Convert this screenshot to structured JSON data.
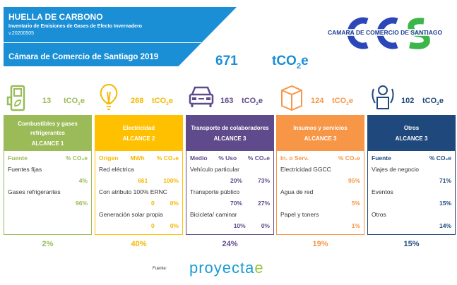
{
  "header": {
    "title": "HUELLA DE CARBONO",
    "subtitle": "Inventario de Emisiones de Gases de Efecto Invernadero",
    "version": "v.20200505",
    "org": "Cámara de Comercio de Santiago 2019"
  },
  "total": {
    "value": "671",
    "unit": "tCO",
    "unit_sub": "2",
    "unit_end": "e"
  },
  "logo": {
    "text": "CAMARA DE COMERCIO DE SANTIAGO",
    "letters": "CCS"
  },
  "categories": [
    {
      "icon": "fuel-pump-leaf-icon",
      "value": "13",
      "color": "#9bbb59",
      "text": "#9bbb59",
      "title": "Combustibles y gases refrigerantes",
      "scope": "ALCANCE 1",
      "share": "2%",
      "cols": [
        "Fuente",
        "% CO₂e"
      ],
      "rows": [
        {
          "label": "Fuentes fijas",
          "vals": [
            "4%"
          ]
        },
        {
          "label": "Gases refrigerantes",
          "vals": [
            "96%"
          ]
        }
      ]
    },
    {
      "icon": "light-bulb-icon",
      "value": "268",
      "color": "#ffc000",
      "text": "#f5b800",
      "title": "Electricidad",
      "scope": "ALCANCE 2",
      "share": "40%",
      "cols": [
        "Origen",
        "MWh",
        "% CO₂e"
      ],
      "rows": [
        {
          "label": "Red eléctrica",
          "vals": [
            "661",
            "100%"
          ]
        },
        {
          "label": "Con atributo 100% ERNC",
          "vals": [
            "0",
            "0%"
          ]
        },
        {
          "label": "Generación solar propia",
          "vals": [
            "0",
            "0%"
          ]
        }
      ]
    },
    {
      "icon": "car-icon",
      "value": "163",
      "color": "#5f4b8b",
      "text": "#5f4b8b",
      "title": "Transporte de colaboradores",
      "scope": "ALCANCE 3",
      "share": "24%",
      "cols": [
        "Medio",
        "% Uso",
        "% CO₂e"
      ],
      "rows": [
        {
          "label": "Vehículo particular",
          "vals": [
            "20%",
            "73%"
          ]
        },
        {
          "label": "Transporte público",
          "vals": [
            "70%",
            "27%"
          ]
        },
        {
          "label": "Bicicleta/ caminar",
          "vals": [
            "10%",
            "0%"
          ]
        }
      ]
    },
    {
      "icon": "box-icon",
      "value": "124",
      "color": "#f79646",
      "text": "#f79646",
      "title": "Insumos y servicios",
      "scope": "ALCANCE 3",
      "share": "19%",
      "cols": [
        "In. o Serv.",
        "% CO₂e"
      ],
      "rows": [
        {
          "label": "Electricidad GGCC",
          "vals": [
            "95%"
          ]
        },
        {
          "label": "Agua de red",
          "vals": [
            "5%"
          ]
        },
        {
          "label": "Papel y toners",
          "vals": [
            "1%"
          ]
        }
      ]
    },
    {
      "icon": "gear-box-cycle-icon",
      "value": "102",
      "color": "#1f497d",
      "text": "#1f497d",
      "title": "Otros",
      "scope": "ALCANCE 3",
      "share": "15%",
      "cols": [
        "Fuente",
        "% CO₂e"
      ],
      "rows": [
        {
          "label": "Viajes de negocio",
          "vals": [
            "71%"
          ]
        },
        {
          "label": "Eventos",
          "vals": [
            "15%"
          ]
        },
        {
          "label": "Otros",
          "vals": [
            "14%"
          ]
        }
      ]
    }
  ],
  "footer": {
    "source_label": "Fuente:",
    "brand": "proyecta",
    "brand_end": "e"
  }
}
